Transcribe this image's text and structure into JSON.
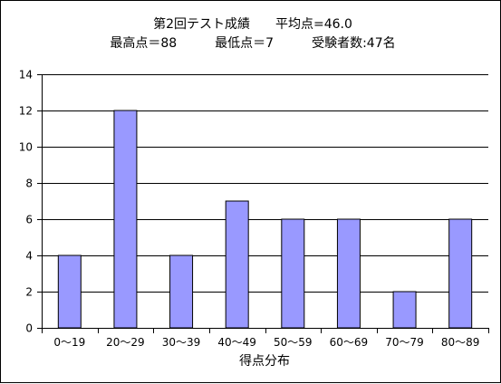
{
  "chart_data": {
    "type": "bar",
    "title_line1": "第2回テスト成績　　平均点=46.0",
    "title_line2": "最高点＝88　　　最低点＝7　　　受験者数:47名",
    "xlabel": "得点分布",
    "ylabel": "",
    "categories": [
      "0～19",
      "20～29",
      "30～39",
      "40～49",
      "50～59",
      "60～69",
      "70～79",
      "80～89"
    ],
    "values": [
      4,
      12,
      4,
      7,
      6,
      6,
      2,
      6
    ],
    "ylim": [
      0,
      14
    ],
    "yticks": [
      "0",
      "2",
      "4",
      "6",
      "8",
      "10",
      "12",
      "14"
    ],
    "grid": true,
    "legend": "none",
    "colors": {
      "bar_fill": "#9999ff",
      "bar_stroke": "#000000",
      "grid": "#000000",
      "background": "#ffffff"
    }
  }
}
